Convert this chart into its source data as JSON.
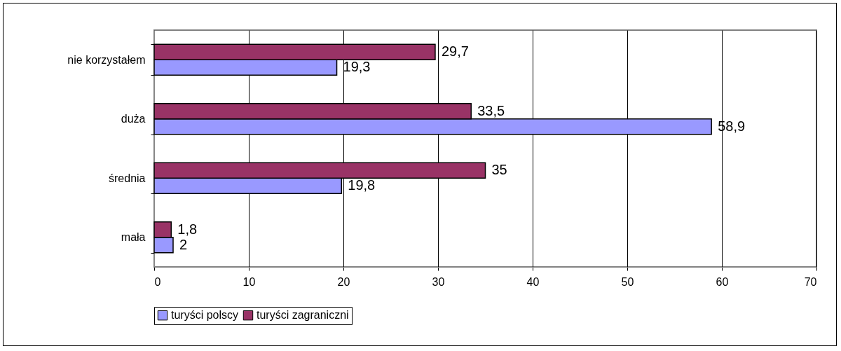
{
  "chart_data": {
    "type": "bar",
    "orientation": "horizontal",
    "categories": [
      "nie korzystałem",
      "duża",
      "średnia",
      "mała"
    ],
    "series": [
      {
        "name": "turyści polscy",
        "color": "#9999ff",
        "values": [
          19.3,
          58.9,
          19.8,
          2
        ],
        "value_labels": [
          "19,3",
          "58,9",
          "19,8",
          "2"
        ]
      },
      {
        "name": "turyści zagraniczni",
        "color": "#993366",
        "values": [
          29.7,
          33.5,
          35,
          1.8
        ],
        "value_labels": [
          "29,7",
          "33,5",
          "35",
          "1,8"
        ]
      }
    ],
    "xlim": [
      0,
      70
    ],
    "xticks": [
      0,
      10,
      20,
      30,
      40,
      50,
      60,
      70
    ],
    "grid": "x",
    "legend": "bottom"
  }
}
